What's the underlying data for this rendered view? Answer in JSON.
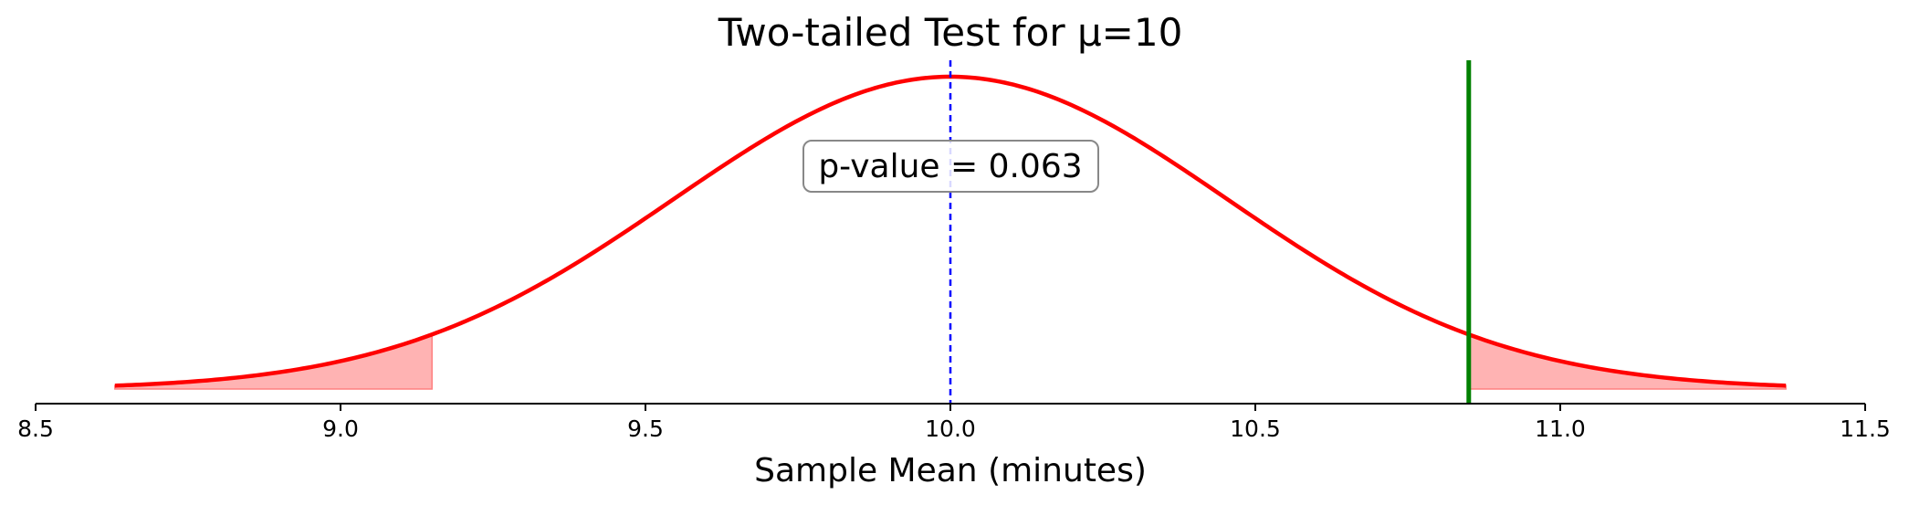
{
  "chart_data": {
    "type": "line",
    "title": "Two-tailed Test for μ=10",
    "xlabel": "Sample Mean (minutes)",
    "ylabel": "",
    "xlim": [
      8.5,
      11.5
    ],
    "xticks": [
      8.5,
      9.0,
      9.5,
      10.0,
      10.5,
      11.0,
      11.5
    ],
    "xtick_labels": [
      "8.5",
      "9.0",
      "9.5",
      "10.0",
      "10.5",
      "11.0",
      "11.5"
    ],
    "y_axis_visible": false,
    "grid": false,
    "distribution": {
      "kind": "normal",
      "mean": 10.0,
      "std": 0.455,
      "x_range": [
        8.63,
        11.37
      ],
      "color": "#ff0000"
    },
    "mean_line": {
      "x": 10.0,
      "color": "#0000ff",
      "style": "dashed"
    },
    "observed_line": {
      "x": 10.85,
      "color": "#008000"
    },
    "rejection_regions": [
      {
        "from": 8.63,
        "to": 9.15
      },
      {
        "from": 10.85,
        "to": 11.37
      }
    ],
    "rejection_fill_color": "#ffb3b3",
    "annotation": {
      "text": "p-value = 0.063",
      "x": 10.0
    }
  }
}
